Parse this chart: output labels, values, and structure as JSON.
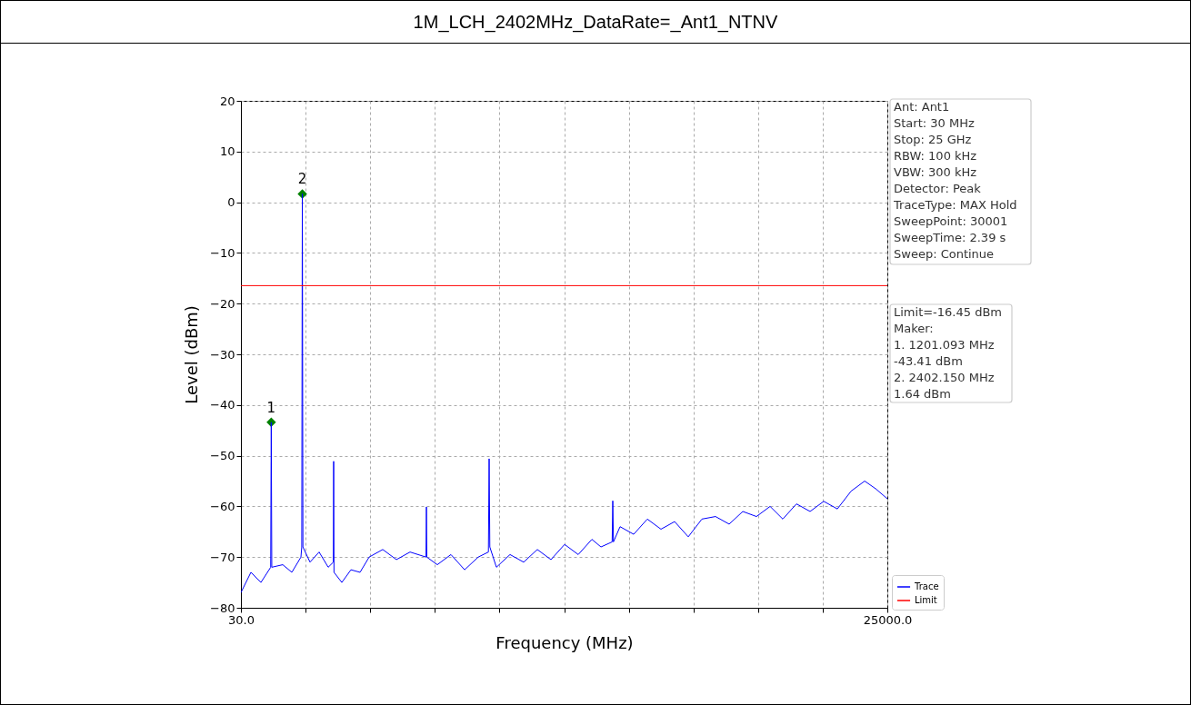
{
  "chart_data": {
    "type": "line",
    "title": "1M_LCH_2402MHz_DataRate=_Ant1_NTNV",
    "xlabel": "Frequency (MHz)",
    "ylabel": "Level (dBm)",
    "xlim": [
      30,
      25000
    ],
    "ylim": [
      -80,
      20
    ],
    "xticks": [
      {
        "value": 30,
        "label": "30.0"
      },
      {
        "value": 2527,
        "label": null
      },
      {
        "value": 5024,
        "label": null
      },
      {
        "value": 7521,
        "label": null
      },
      {
        "value": 10018,
        "label": null
      },
      {
        "value": 12515,
        "label": null
      },
      {
        "value": 15012,
        "label": null
      },
      {
        "value": 17509,
        "label": null
      },
      {
        "value": 20006,
        "label": null
      },
      {
        "value": 22503,
        "label": null
      },
      {
        "value": 25000,
        "label": "25000.0"
      }
    ],
    "yticks": [
      -80,
      -70,
      -60,
      -50,
      -40,
      -30,
      -20,
      -10,
      0,
      10,
      20
    ],
    "grid": true,
    "legend": "bottom right",
    "line_style": "solid",
    "series": [
      {
        "name": "Trace",
        "color": "#0000ff",
        "x": [
          30,
          416,
          803,
          1180,
          1201.093,
          1222,
          1646,
          1997,
          2348,
          2380,
          2402.15,
          2425,
          2699,
          3050,
          3402,
          3600,
          3612,
          3625,
          3928,
          4280,
          4631,
          4982,
          5509,
          6036,
          6563,
          7180,
          7195,
          7210,
          7616,
          8143,
          8670,
          9197,
          9590,
          9618,
          9645,
          9899,
          10425,
          10952,
          11479,
          12006,
          12533,
          13060,
          13587,
          13938,
          14370,
          14394,
          14420,
          14675,
          15202,
          15729,
          16256,
          16783,
          17310,
          17837,
          18364,
          18890,
          19417,
          19944,
          20471,
          20962,
          21489,
          22016,
          22543,
          23070,
          23597,
          24124,
          24545,
          25000
        ],
        "values": [
          -77,
          -73,
          -75,
          -72,
          -43.41,
          -72,
          -71.5,
          -73,
          -70,
          -68,
          1.64,
          -68,
          -71,
          -69,
          -72,
          -71,
          -51.1,
          -73,
          -75,
          -72.5,
          -73,
          -70,
          -68.5,
          -70.5,
          -69,
          -70,
          -60.1,
          -70,
          -71.5,
          -69.5,
          -72.5,
          -70,
          -69,
          -50.6,
          -68,
          -72,
          -69.5,
          -71,
          -68.5,
          -70.5,
          -67.5,
          -69.5,
          -66.5,
          -68,
          -67,
          -58.9,
          -67,
          -64,
          -65.5,
          -62.5,
          -64.5,
          -63,
          -66,
          -62.5,
          -62,
          -63.5,
          -61,
          -62,
          -60,
          -62.5,
          -59.5,
          -61,
          -59,
          -60.5,
          -57,
          -55,
          -56.5,
          -58.5
        ]
      },
      {
        "type": "scatter",
        "color": "#008000",
        "marker": "diamond",
        "x": [
          1201.093,
          2402.15
        ],
        "values": [
          -43.41,
          1.64
        ]
      }
    ],
    "ref_lines": [
      {
        "axis": "y",
        "value": -16.45,
        "label": "Limit",
        "color": "#ff0000"
      }
    ],
    "annotations": [
      "Ant: Ant1\nStart: 30 MHz\nStop: 25 GHz\nRBW: 100 kHz\nVBW: 300 kHz\nDetector: Peak\nTraceType: MAX Hold\nSweepPoint: 30001\nSweepTime: 2.39 s\nSweep: Continue",
      "Limit=-16.45 dBm\nMaker:\n1. 1201.093 MHz\n    -43.41 dBm\n2. 2402.150 MHz\n    1.64 dBm",
      {
        "text": "1",
        "x": 1201.093,
        "y": -43.41
      },
      {
        "text": "2",
        "x": 2402.15,
        "y": 1.64
      }
    ]
  }
}
